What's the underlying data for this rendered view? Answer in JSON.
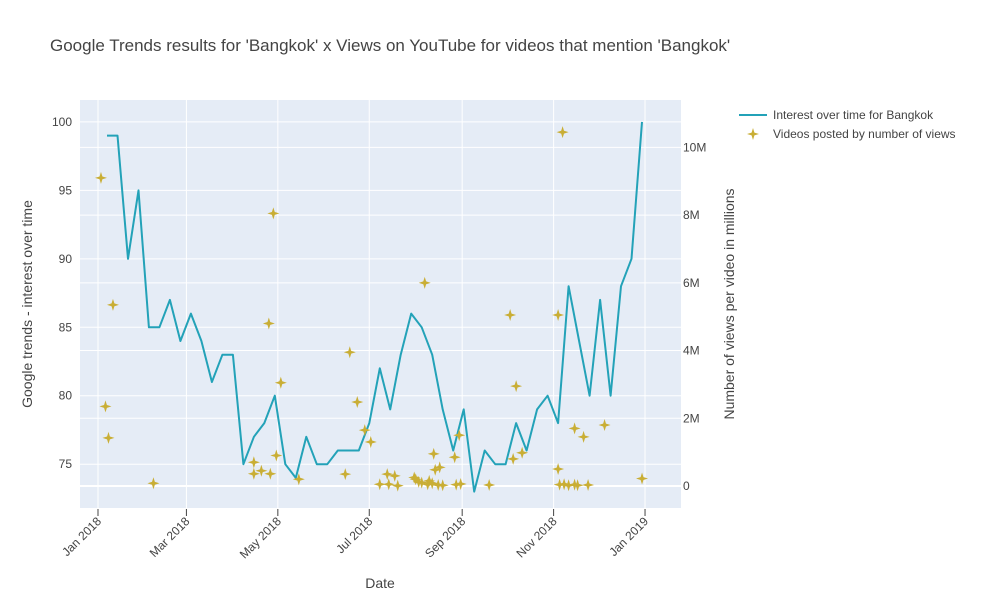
{
  "chart_data": {
    "type": "line",
    "title": "Google Trends results for 'Bangkok' x Views on YouTube for videos that mention 'Bangkok'",
    "xlabel": "Date",
    "ylabel": "Google trends - interest over time",
    "y2label": "Number of views per video in millions",
    "xlim": [
      "2017-12-20",
      "2019-01-25"
    ],
    "ylim": [
      71.8,
      101.6
    ],
    "y2lim": [
      -650000,
      11400000
    ],
    "x_ticks": [
      {
        "value": "2018-01-01",
        "label": "Jan 2018"
      },
      {
        "value": "2018-03-01",
        "label": "Mar 2018"
      },
      {
        "value": "2018-05-01",
        "label": "May 2018"
      },
      {
        "value": "2018-07-01",
        "label": "Jul 2018"
      },
      {
        "value": "2018-09-01",
        "label": "Sep 2018"
      },
      {
        "value": "2018-11-01",
        "label": "Nov 2018"
      },
      {
        "value": "2019-01-01",
        "label": "Jan 2019"
      }
    ],
    "y_ticks": [
      {
        "value": 75,
        "label": "75"
      },
      {
        "value": 80,
        "label": "80"
      },
      {
        "value": 85,
        "label": "85"
      },
      {
        "value": 90,
        "label": "90"
      },
      {
        "value": 95,
        "label": "95"
      },
      {
        "value": 100,
        "label": "100"
      }
    ],
    "y2_ticks": [
      {
        "value": 0,
        "label": "0"
      },
      {
        "value": 2000000,
        "label": "2M"
      },
      {
        "value": 4000000,
        "label": "4M"
      },
      {
        "value": 6000000,
        "label": "6M"
      },
      {
        "value": 8000000,
        "label": "8M"
      },
      {
        "value": 10000000,
        "label": "10M"
      }
    ],
    "legend_position": "top-right",
    "grid": true,
    "series": [
      {
        "name": "Interest over time for Bangkok",
        "type": "line",
        "axis": "y",
        "color": "#23a2b8",
        "points": [
          {
            "x": "2018-01-07",
            "y": 99
          },
          {
            "x": "2018-01-14",
            "y": 99
          },
          {
            "x": "2018-01-21",
            "y": 90
          },
          {
            "x": "2018-01-28",
            "y": 95
          },
          {
            "x": "2018-02-04",
            "y": 85
          },
          {
            "x": "2018-02-11",
            "y": 85
          },
          {
            "x": "2018-02-18",
            "y": 87
          },
          {
            "x": "2018-02-25",
            "y": 84
          },
          {
            "x": "2018-03-04",
            "y": 86
          },
          {
            "x": "2018-03-11",
            "y": 84
          },
          {
            "x": "2018-03-18",
            "y": 81
          },
          {
            "x": "2018-03-25",
            "y": 83
          },
          {
            "x": "2018-04-01",
            "y": 83
          },
          {
            "x": "2018-04-08",
            "y": 75
          },
          {
            "x": "2018-04-15",
            "y": 77
          },
          {
            "x": "2018-04-22",
            "y": 78
          },
          {
            "x": "2018-04-29",
            "y": 80
          },
          {
            "x": "2018-05-06",
            "y": 75
          },
          {
            "x": "2018-05-13",
            "y": 74
          },
          {
            "x": "2018-05-20",
            "y": 77
          },
          {
            "x": "2018-05-27",
            "y": 75
          },
          {
            "x": "2018-06-03",
            "y": 75
          },
          {
            "x": "2018-06-10",
            "y": 76
          },
          {
            "x": "2018-06-17",
            "y": 76
          },
          {
            "x": "2018-06-24",
            "y": 76
          },
          {
            "x": "2018-07-01",
            "y": 78
          },
          {
            "x": "2018-07-08",
            "y": 82
          },
          {
            "x": "2018-07-15",
            "y": 79
          },
          {
            "x": "2018-07-22",
            "y": 83
          },
          {
            "x": "2018-07-29",
            "y": 86
          },
          {
            "x": "2018-08-05",
            "y": 85
          },
          {
            "x": "2018-08-12",
            "y": 83
          },
          {
            "x": "2018-08-19",
            "y": 79
          },
          {
            "x": "2018-08-26",
            "y": 76
          },
          {
            "x": "2018-09-02",
            "y": 79
          },
          {
            "x": "2018-09-09",
            "y": 73
          },
          {
            "x": "2018-09-16",
            "y": 76
          },
          {
            "x": "2018-09-23",
            "y": 75
          },
          {
            "x": "2018-09-30",
            "y": 75
          },
          {
            "x": "2018-10-07",
            "y": 78
          },
          {
            "x": "2018-10-14",
            "y": 76
          },
          {
            "x": "2018-10-21",
            "y": 79
          },
          {
            "x": "2018-10-28",
            "y": 80
          },
          {
            "x": "2018-11-04",
            "y": 78
          },
          {
            "x": "2018-11-11",
            "y": 88
          },
          {
            "x": "2018-11-18",
            "y": 84
          },
          {
            "x": "2018-11-25",
            "y": 80
          },
          {
            "x": "2018-12-02",
            "y": 87
          },
          {
            "x": "2018-12-09",
            "y": 80
          },
          {
            "x": "2018-12-16",
            "y": 88
          },
          {
            "x": "2018-12-23",
            "y": 90
          },
          {
            "x": "2018-12-30",
            "y": 100
          }
        ]
      },
      {
        "name": "Videos posted by number of views",
        "type": "scatter",
        "axis": "y2",
        "color": "#c9ae35",
        "points": [
          {
            "x": "2018-01-03",
            "y": 9100000
          },
          {
            "x": "2018-01-06",
            "y": 2350000
          },
          {
            "x": "2018-01-08",
            "y": 1420000
          },
          {
            "x": "2018-01-11",
            "y": 5350000
          },
          {
            "x": "2018-02-07",
            "y": 80000
          },
          {
            "x": "2018-04-15",
            "y": 700000
          },
          {
            "x": "2018-04-15",
            "y": 360000
          },
          {
            "x": "2018-04-20",
            "y": 450000
          },
          {
            "x": "2018-04-25",
            "y": 4800000
          },
          {
            "x": "2018-04-26",
            "y": 360000
          },
          {
            "x": "2018-04-28",
            "y": 8050000
          },
          {
            "x": "2018-04-30",
            "y": 900000
          },
          {
            "x": "2018-05-03",
            "y": 3050000
          },
          {
            "x": "2018-05-15",
            "y": 200000
          },
          {
            "x": "2018-06-15",
            "y": 350000
          },
          {
            "x": "2018-06-18",
            "y": 3950000
          },
          {
            "x": "2018-06-23",
            "y": 2480000
          },
          {
            "x": "2018-06-28",
            "y": 1650000
          },
          {
            "x": "2018-07-02",
            "y": 1300000
          },
          {
            "x": "2018-07-08",
            "y": 50000
          },
          {
            "x": "2018-07-13",
            "y": 350000
          },
          {
            "x": "2018-07-14",
            "y": 50000
          },
          {
            "x": "2018-07-18",
            "y": 300000
          },
          {
            "x": "2018-07-20",
            "y": 10000
          },
          {
            "x": "2018-07-31",
            "y": 250000
          },
          {
            "x": "2018-08-01",
            "y": 200000
          },
          {
            "x": "2018-08-03",
            "y": 120000
          },
          {
            "x": "2018-08-05",
            "y": 100000
          },
          {
            "x": "2018-08-07",
            "y": 6000000
          },
          {
            "x": "2018-08-09",
            "y": 50000
          },
          {
            "x": "2018-08-10",
            "y": 150000
          },
          {
            "x": "2018-08-12",
            "y": 80000
          },
          {
            "x": "2018-08-13",
            "y": 950000
          },
          {
            "x": "2018-08-14",
            "y": 480000
          },
          {
            "x": "2018-08-16",
            "y": 30000
          },
          {
            "x": "2018-08-17",
            "y": 550000
          },
          {
            "x": "2018-08-19",
            "y": 20000
          },
          {
            "x": "2018-08-27",
            "y": 850000
          },
          {
            "x": "2018-08-28",
            "y": 40000
          },
          {
            "x": "2018-08-30",
            "y": 1500000
          },
          {
            "x": "2018-08-31",
            "y": 60000
          },
          {
            "x": "2018-09-19",
            "y": 30000
          },
          {
            "x": "2018-10-03",
            "y": 5050000
          },
          {
            "x": "2018-10-05",
            "y": 800000
          },
          {
            "x": "2018-10-07",
            "y": 2950000
          },
          {
            "x": "2018-10-11",
            "y": 980000
          },
          {
            "x": "2018-11-04",
            "y": 5050000
          },
          {
            "x": "2018-11-04",
            "y": 500000
          },
          {
            "x": "2018-11-05",
            "y": 40000
          },
          {
            "x": "2018-11-07",
            "y": 10450000
          },
          {
            "x": "2018-11-08",
            "y": 50000
          },
          {
            "x": "2018-11-11",
            "y": 20000
          },
          {
            "x": "2018-11-15",
            "y": 1700000
          },
          {
            "x": "2018-11-15",
            "y": 40000
          },
          {
            "x": "2018-11-17",
            "y": 20000
          },
          {
            "x": "2018-11-21",
            "y": 1450000
          },
          {
            "x": "2018-11-24",
            "y": 30000
          },
          {
            "x": "2018-12-05",
            "y": 1800000
          },
          {
            "x": "2018-12-30",
            "y": 220000
          }
        ]
      }
    ]
  }
}
